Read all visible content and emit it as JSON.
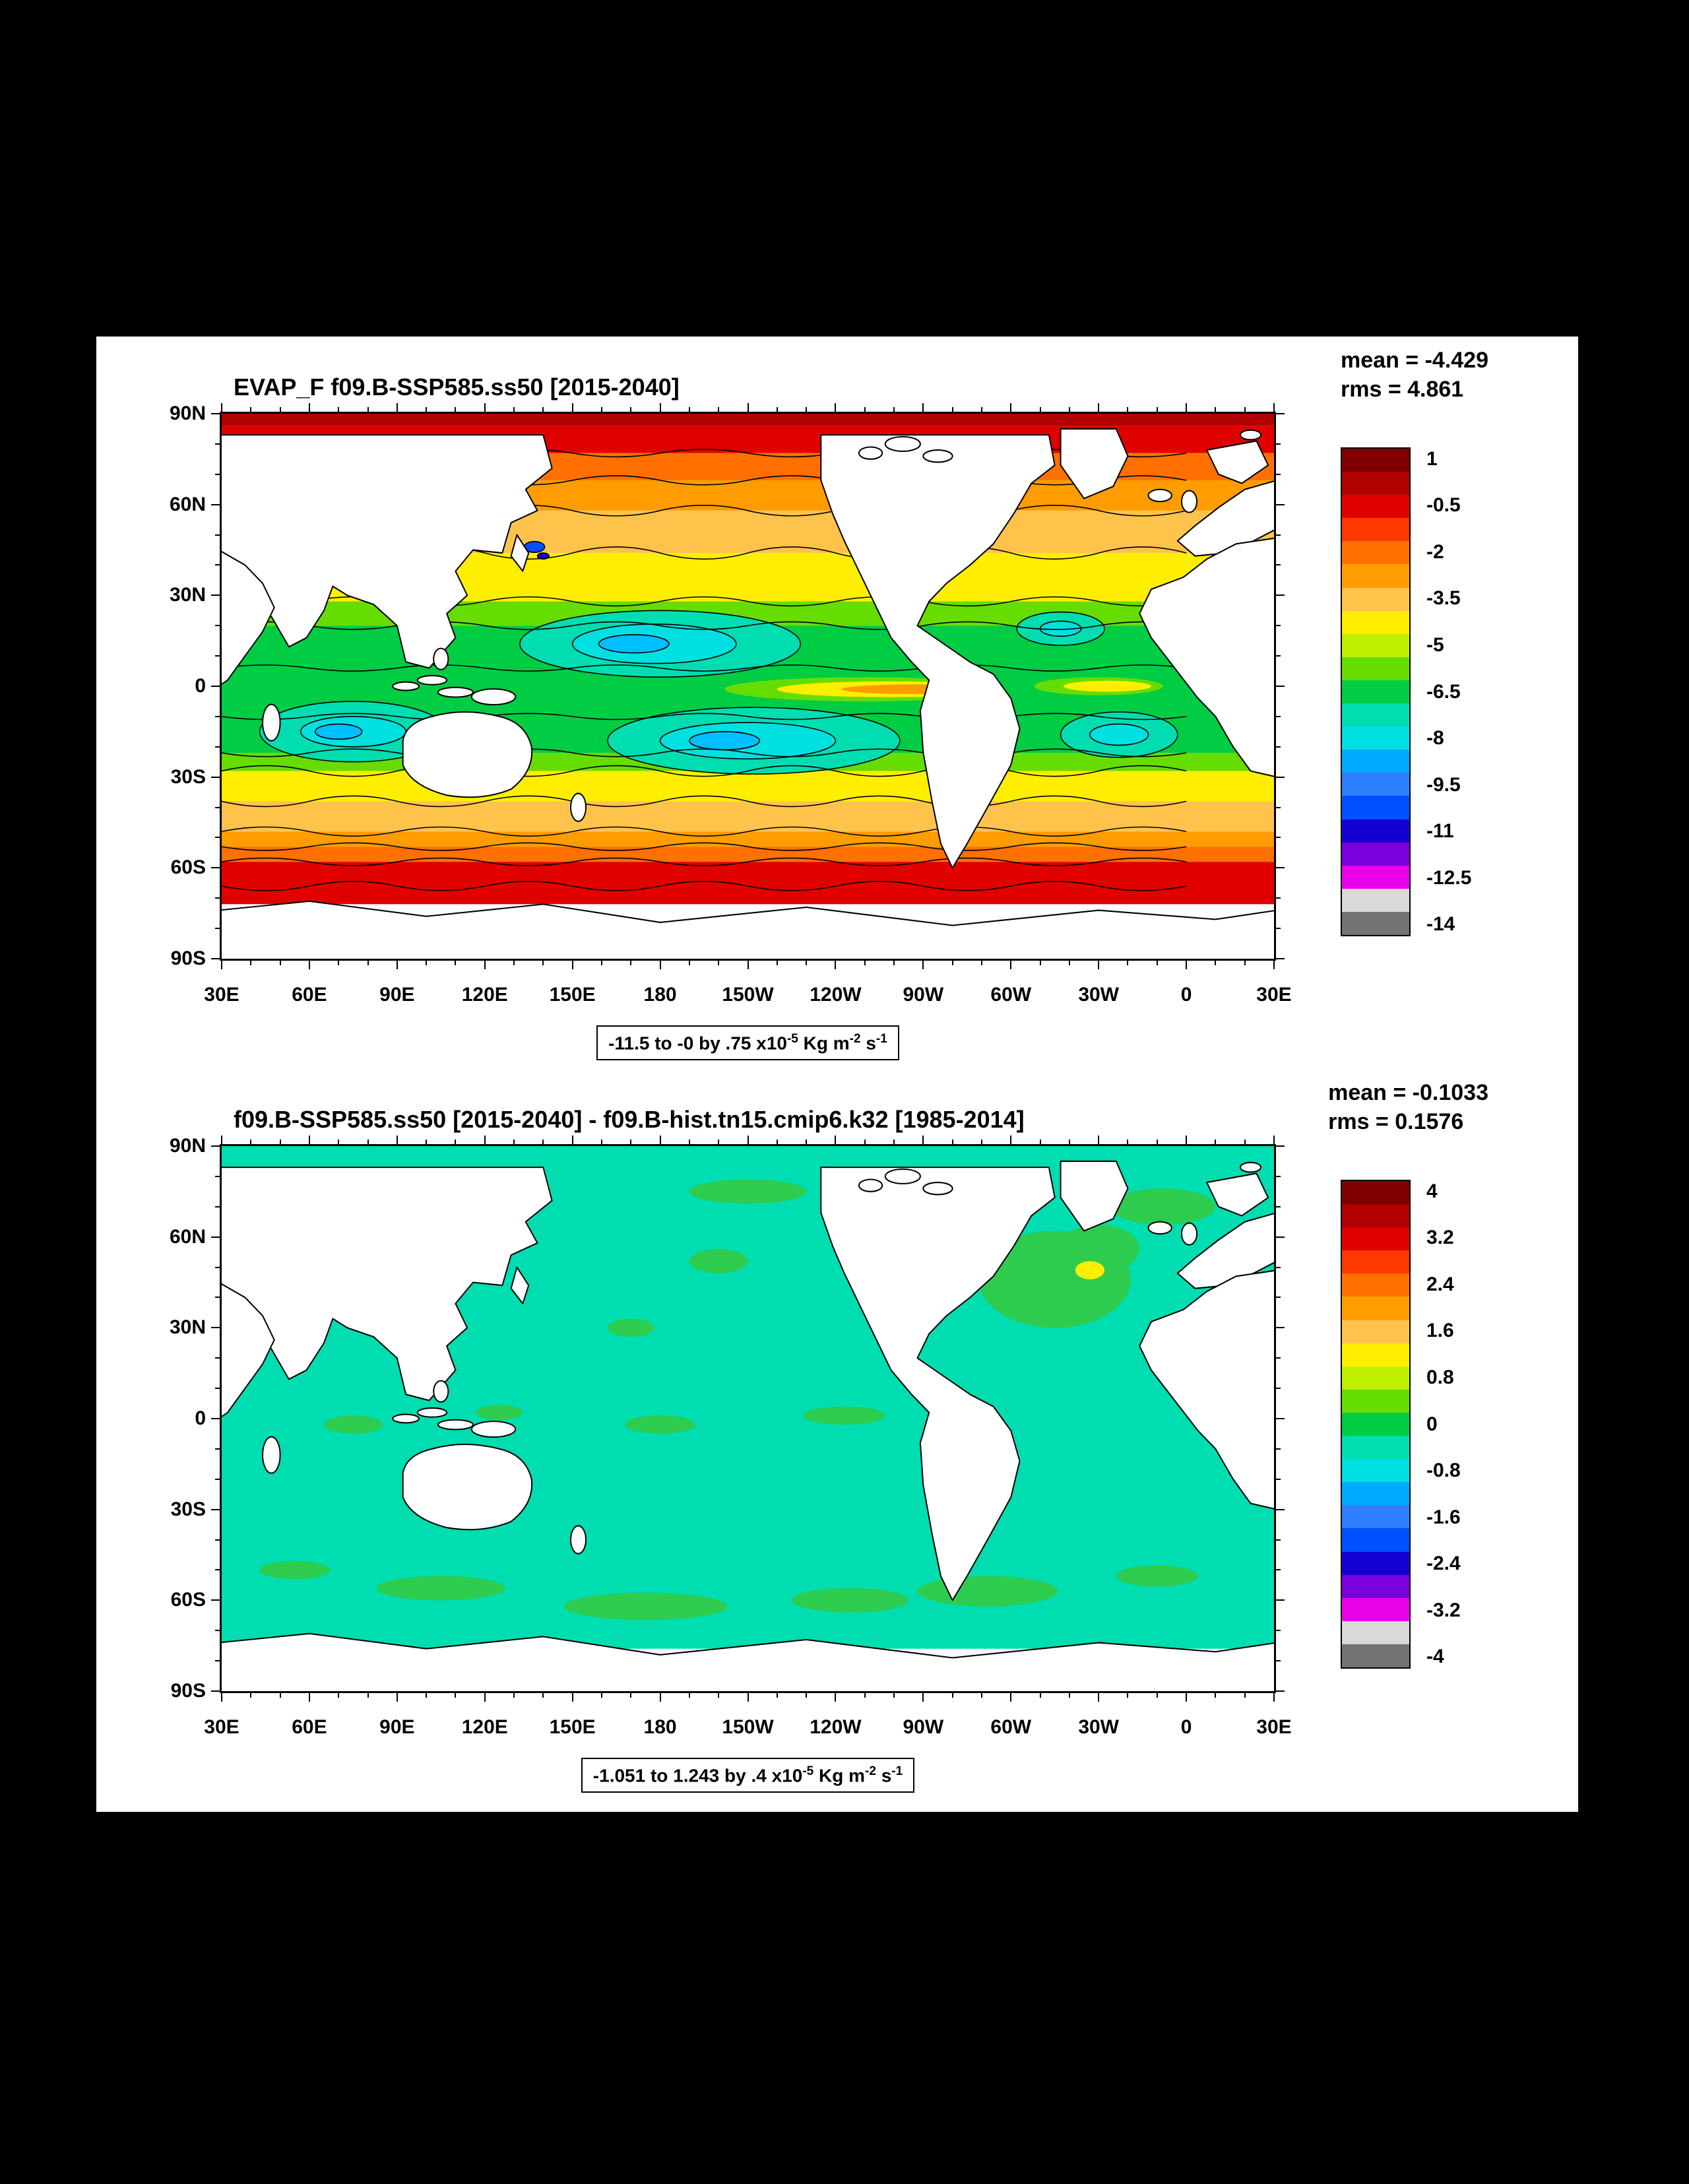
{
  "background": "#000000",
  "sheet_color": "#ffffff",
  "panels": [
    {
      "title": "EVAP_F f09.B-SSP585.ss50 [2015-2040]",
      "stats": {
        "mean": "mean = -4.429",
        "rms": "rms = 4.861"
      },
      "caption": {
        "t1": "-11.5 to -0 by .75 x10",
        "e1": "-5",
        "t2": " Kg m",
        "e2": "-2",
        "t3": " s",
        "e3": "-1"
      },
      "axes": {
        "lat": [
          "90N",
          "60N",
          "30N",
          "0",
          "30S",
          "60S",
          "90S"
        ],
        "lon": [
          "30E",
          "60E",
          "90E",
          "120E",
          "150E",
          "180",
          "150W",
          "120W",
          "90W",
          "60W",
          "30W",
          "0",
          "30E"
        ]
      },
      "colorbar": {
        "labels": [
          "1",
          "-0.5",
          "-2",
          "-3.5",
          "-5",
          "-6.5",
          "-8",
          "-9.5",
          "-11",
          "-12.5",
          "-14"
        ],
        "colors": [
          "#800000",
          "#b00000",
          "#e00000",
          "#ff3800",
          "#ff7000",
          "#ff9c00",
          "#ffc34c",
          "#ffee00",
          "#bfef00",
          "#66dd00",
          "#00cc44",
          "#00ddb0",
          "#00e0e0",
          "#00aaff",
          "#2e7fff",
          "#0050ff",
          "#1400d2",
          "#7a00dc",
          "#e800e8",
          "#d9d9d9",
          "#737373"
        ]
      }
    },
    {
      "title": "f09.B-SSP585.ss50 [2015-2040] - f09.B-hist.tn15.cmip6.k32 [1985-2014]",
      "stats": {
        "mean": "mean = -0.1033",
        "rms": "rms = 0.1576"
      },
      "caption": {
        "t1": "-1.051 to 1.243 by .4 x10",
        "e1": "-5",
        "t2": " Kg m",
        "e2": "-2",
        "t3": " s",
        "e3": "-1"
      },
      "axes": {
        "lat": [
          "90N",
          "60N",
          "30N",
          "0",
          "30S",
          "60S",
          "90S"
        ],
        "lon": [
          "30E",
          "60E",
          "90E",
          "120E",
          "150E",
          "180",
          "150W",
          "120W",
          "90W",
          "60W",
          "30W",
          "0",
          "30E"
        ]
      },
      "colorbar": {
        "labels": [
          "4",
          "3.2",
          "2.4",
          "1.6",
          "0.8",
          "0",
          "-0.8",
          "-1.6",
          "-2.4",
          "-3.2",
          "-4"
        ],
        "colors": [
          "#800000",
          "#b00000",
          "#e00000",
          "#ff3800",
          "#ff7000",
          "#ff9c00",
          "#ffc34c",
          "#ffee00",
          "#bfef00",
          "#66dd00",
          "#00cc44",
          "#00ddb0",
          "#00e0e0",
          "#00aaff",
          "#2e7fff",
          "#0050ff",
          "#1400d2",
          "#7a00dc",
          "#e800e8",
          "#d9d9d9",
          "#737373"
        ]
      }
    }
  ],
  "chart_data": [
    {
      "type": "heatmap",
      "subtype": "filled-contour-world-map",
      "title": "EVAP_F f09.B-SSP585.ss50 [2015-2040]",
      "variable": "EVAP_F",
      "mean": -4.429,
      "rms": 4.861,
      "contour_levels": "-11.5 to -0 by .75",
      "units": "x10^-5 Kg m^-2 s^-1",
      "colorbar_tick_values": [
        1,
        -0.5,
        -2,
        -3.5,
        -5,
        -6.5,
        -8,
        -9.5,
        -11,
        -12.5,
        -14
      ],
      "x_ticks": [
        "30E",
        "60E",
        "90E",
        "120E",
        "150E",
        "180",
        "150W",
        "120W",
        "90W",
        "60W",
        "30W",
        "0",
        "30E"
      ],
      "y_ticks": [
        "90N",
        "60N",
        "30N",
        "0",
        "30S",
        "60S",
        "90S"
      ],
      "projection": "equirectangular world map, longitude 30E eastward around to 30E, latitude 90N to 90S",
      "legend_position": "right vertical labelbar",
      "pattern_summary": "Near-zero evaporation (red/dark red) over polar oceans (poleward of ~60N and ~55S), orange/yellow bands at mid-latitudes (~30-55 N/S), strongest negative values (green to cyan, about -6 to -10) across tropical/subtropical oceans with cyan subtropical gyre maxima in the N Pacific, S Pacific, S Indian and S Atlantic; narrow yellow/orange low-evaporation tongue along the equatorial E Pacific and Atlantic; small deep-blue/navy extremes near the Kuroshio and Gulf Stream; land masked white."
    },
    {
      "type": "heatmap",
      "subtype": "filled-contour-world-map",
      "title": "f09.B-SSP585.ss50 [2015-2040] - f09.B-hist.tn15.cmip6.k32 [1985-2014]",
      "variable": "EVAP_F difference",
      "mean": -0.1033,
      "rms": 0.1576,
      "contour_levels": "-1.051 to 1.243 by .4",
      "units": "x10^-5 Kg m^-2 s^-1",
      "colorbar_tick_values": [
        4,
        3.2,
        2.4,
        1.6,
        0.8,
        0,
        -0.8,
        -1.6,
        -2.4,
        -3.2,
        -4
      ],
      "x_ticks": [
        "30E",
        "60E",
        "90E",
        "120E",
        "150E",
        "180",
        "150W",
        "120W",
        "90W",
        "60W",
        "30W",
        "0",
        "30E"
      ],
      "y_ticks": [
        "90N",
        "60N",
        "30N",
        "0",
        "30S",
        "60S",
        "90S"
      ],
      "projection": "equirectangular world map, longitude 30E eastward around to 30E, latitude 90N to 90S",
      "legend_position": "right vertical labelbar",
      "pattern_summary": "Nearly uniform small negative difference (turquoise, 0 to -0.8) over world oceans, scattered weak positive (green) patches in the Arctic, equatorial Pacific and Southern Ocean, and a pronounced positive anomaly (green with yellow core near 1) in the subpolar North Atlantic; land masked white."
    }
  ]
}
